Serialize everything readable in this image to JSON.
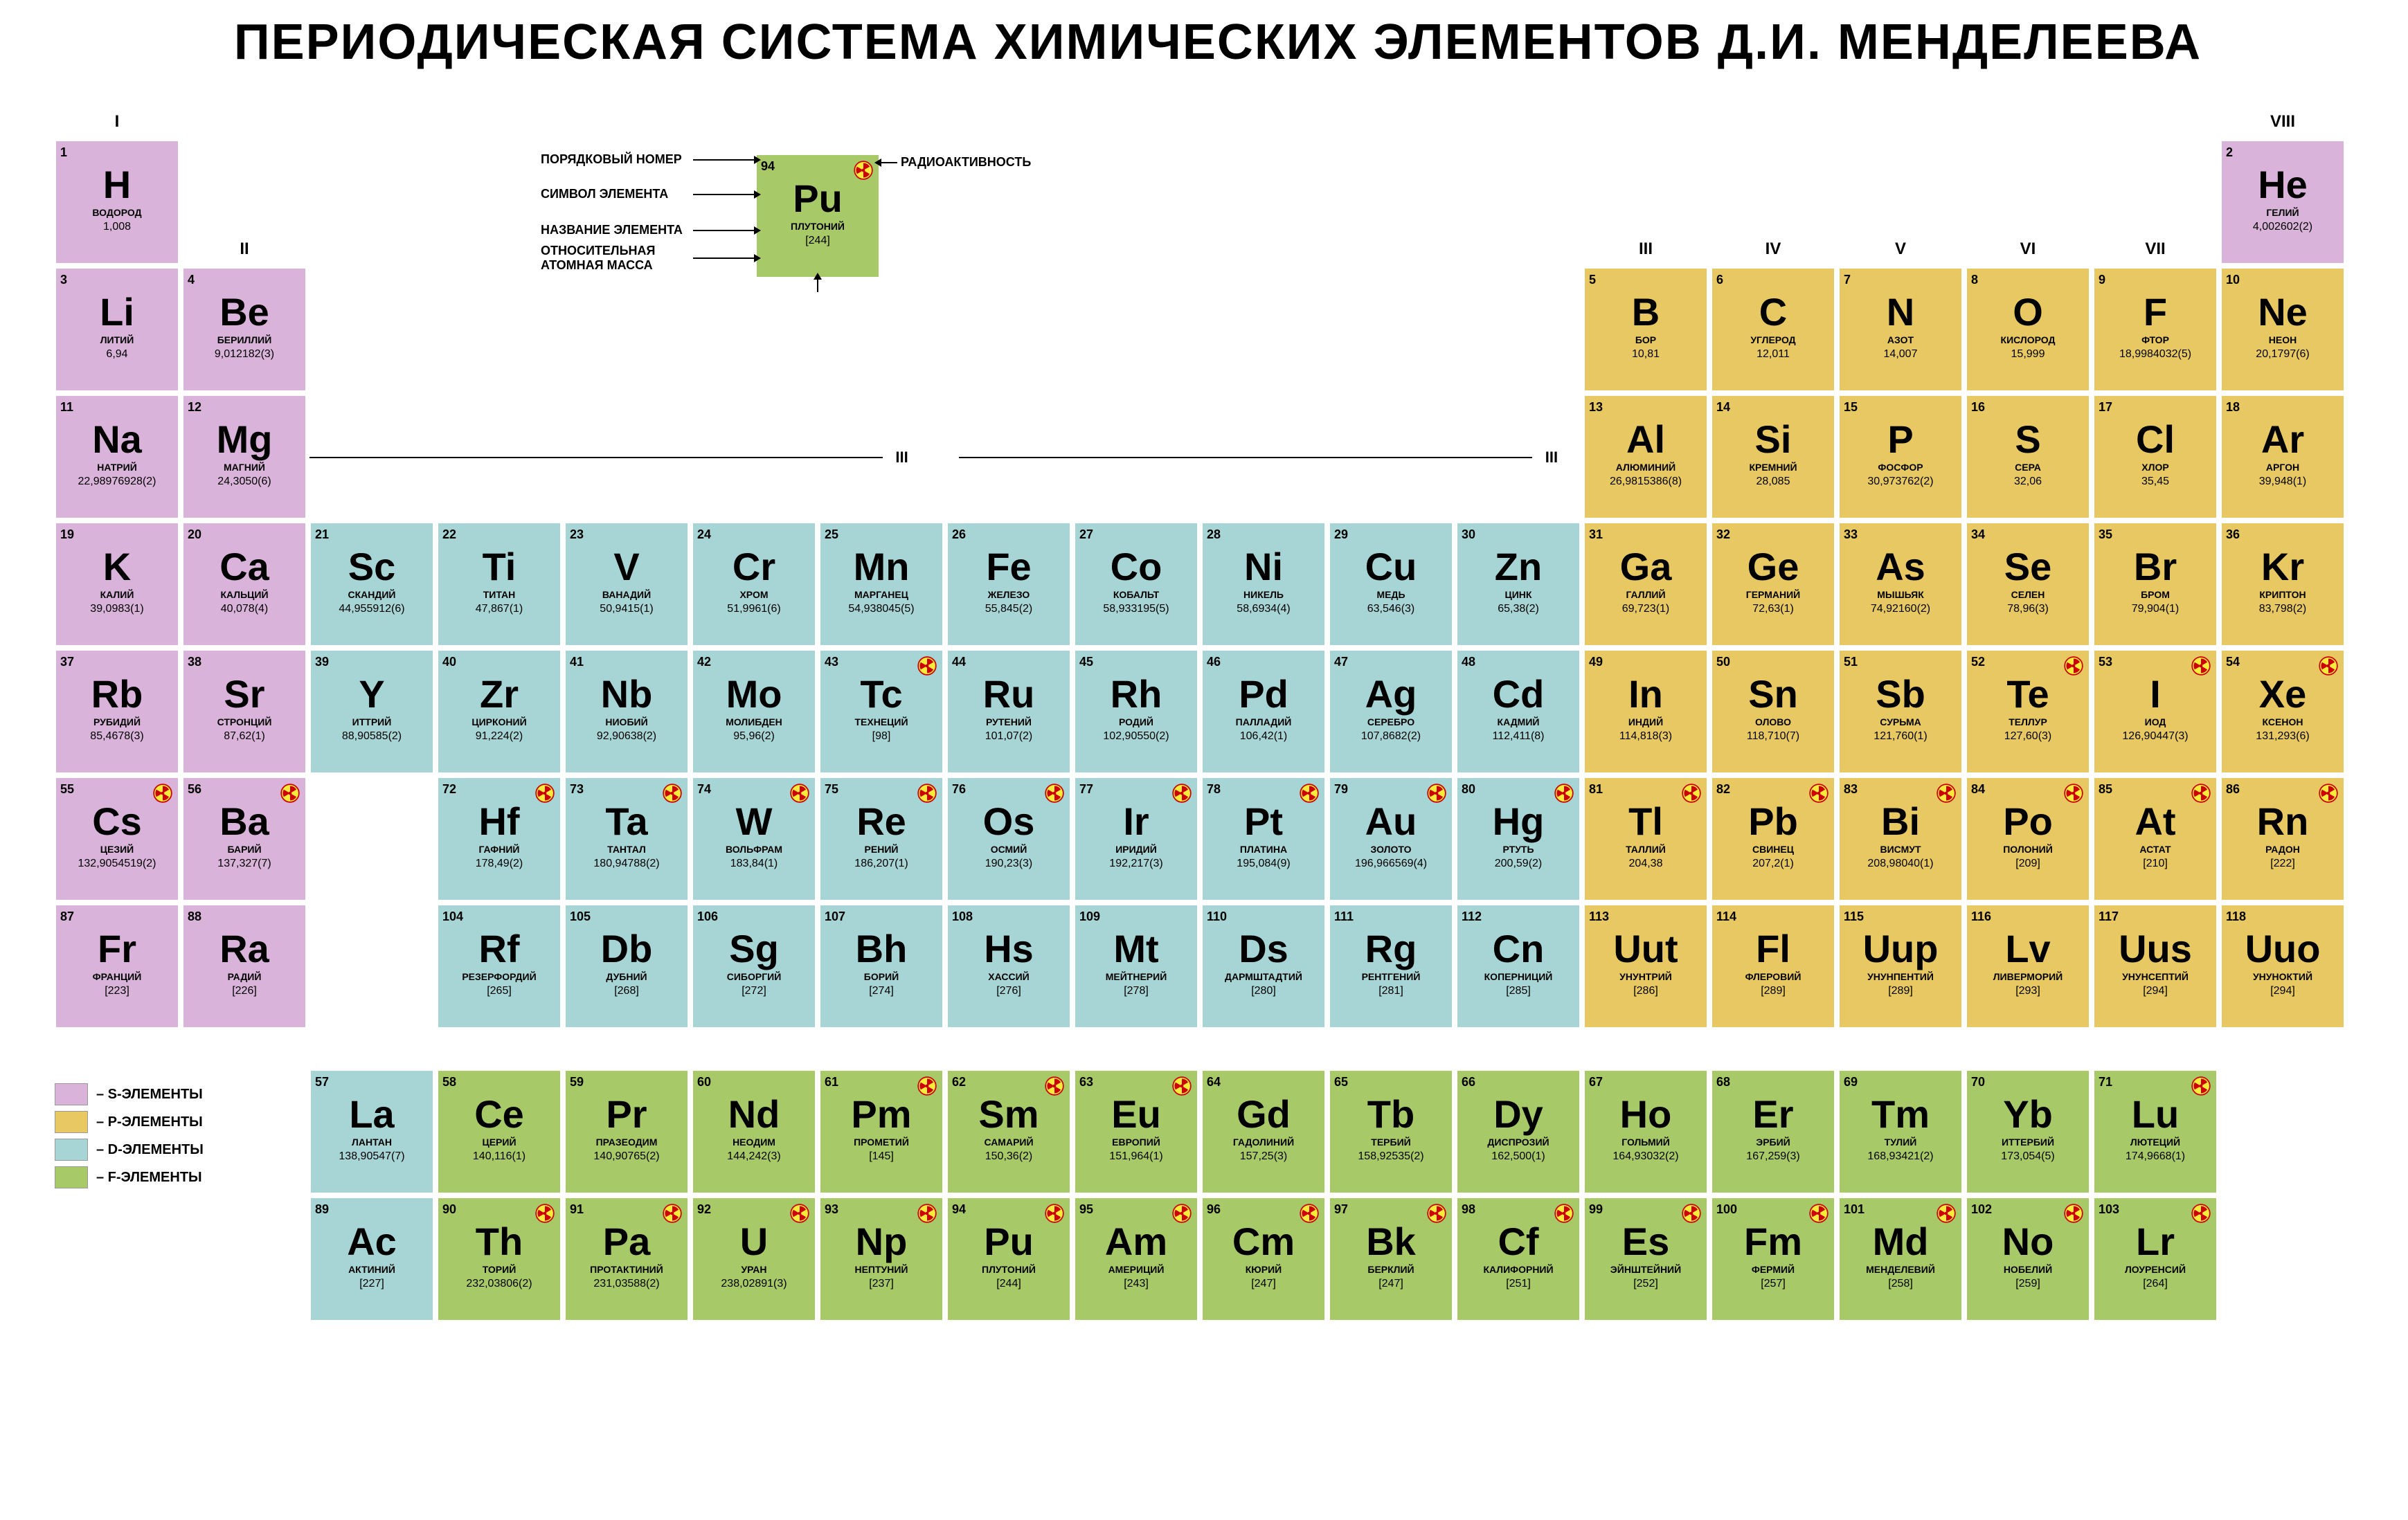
{
  "title": "ПЕРИОДИЧЕСКАЯ СИСТЕМА ХИМИЧЕСКИХ ЭЛЕМЕНТОВ Д.И. МЕНДЕЛЕЕВА",
  "colors": {
    "s": "#d9b3d9",
    "p": "#e8c862",
    "d": "#a7d4d4",
    "f": "#a8c968",
    "background": "#ffffff",
    "text": "#2a2a2a"
  },
  "cell": {
    "w": 180,
    "h": 180,
    "gap": 4
  },
  "groups": {
    "I": 0,
    "II": 1,
    "III": 12,
    "IV": 13,
    "V": 14,
    "VI": 15,
    "VII": 16,
    "VIII": 17
  },
  "key": {
    "labels": {
      "atomic_number": "ПОРЯДКОВЫЙ НОМЕР",
      "symbol": "СИМВОЛ ЭЛЕМЕНТА",
      "name": "НАЗВАНИЕ ЭЛЕМЕНТА",
      "mass": "ОТНОСИТЕЛЬНАЯ АТОМНАЯ МАССА",
      "radioactive": "РАДИОАКТИВНОСТЬ"
    },
    "example": {
      "n": 94,
      "sym": "Pu",
      "name": "ПЛУТОНИЙ",
      "mass": "[244]",
      "block": "f",
      "rad": true
    }
  },
  "legend": [
    {
      "block": "s",
      "label": "– S-ЭЛЕМЕНТЫ"
    },
    {
      "block": "p",
      "label": "– P-ЭЛЕМЕНТЫ"
    },
    {
      "block": "d",
      "label": "– D-ЭЛЕМЕНТЫ"
    },
    {
      "block": "f",
      "label": "– F-ЭЛЕМЕНТЫ"
    }
  ],
  "iii_label": "III",
  "elements": [
    {
      "n": 1,
      "sym": "H",
      "name": "ВОДОРОД",
      "mass": "1,008",
      "block": "s",
      "row": 0,
      "col": 0
    },
    {
      "n": 2,
      "sym": "He",
      "name": "ГЕЛИЙ",
      "mass": "4,002602(2)",
      "block": "s",
      "row": 0,
      "col": 17
    },
    {
      "n": 3,
      "sym": "Li",
      "name": "ЛИТИЙ",
      "mass": "6,94",
      "block": "s",
      "row": 1,
      "col": 0
    },
    {
      "n": 4,
      "sym": "Be",
      "name": "БЕРИЛЛИЙ",
      "mass": "9,012182(3)",
      "block": "s",
      "row": 1,
      "col": 1
    },
    {
      "n": 5,
      "sym": "B",
      "name": "БОР",
      "mass": "10,81",
      "block": "p",
      "row": 1,
      "col": 12
    },
    {
      "n": 6,
      "sym": "C",
      "name": "УГЛЕРОД",
      "mass": "12,011",
      "block": "p",
      "row": 1,
      "col": 13
    },
    {
      "n": 7,
      "sym": "N",
      "name": "АЗОТ",
      "mass": "14,007",
      "block": "p",
      "row": 1,
      "col": 14
    },
    {
      "n": 8,
      "sym": "O",
      "name": "КИСЛОРОД",
      "mass": "15,999",
      "block": "p",
      "row": 1,
      "col": 15
    },
    {
      "n": 9,
      "sym": "F",
      "name": "ФТОР",
      "mass": "18,9984032(5)",
      "block": "p",
      "row": 1,
      "col": 16
    },
    {
      "n": 10,
      "sym": "Ne",
      "name": "НЕОН",
      "mass": "20,1797(6)",
      "block": "p",
      "row": 1,
      "col": 17
    },
    {
      "n": 11,
      "sym": "Na",
      "name": "НАТРИЙ",
      "mass": "22,98976928(2)",
      "block": "s",
      "row": 2,
      "col": 0
    },
    {
      "n": 12,
      "sym": "Mg",
      "name": "МАГНИЙ",
      "mass": "24,3050(6)",
      "block": "s",
      "row": 2,
      "col": 1
    },
    {
      "n": 13,
      "sym": "Al",
      "name": "АЛЮМИНИЙ",
      "mass": "26,9815386(8)",
      "block": "p",
      "row": 2,
      "col": 12
    },
    {
      "n": 14,
      "sym": "Si",
      "name": "КРЕМНИЙ",
      "mass": "28,085",
      "block": "p",
      "row": 2,
      "col": 13
    },
    {
      "n": 15,
      "sym": "P",
      "name": "ФОСФОР",
      "mass": "30,973762(2)",
      "block": "p",
      "row": 2,
      "col": 14
    },
    {
      "n": 16,
      "sym": "S",
      "name": "СЕРА",
      "mass": "32,06",
      "block": "p",
      "row": 2,
      "col": 15
    },
    {
      "n": 17,
      "sym": "Cl",
      "name": "ХЛОР",
      "mass": "35,45",
      "block": "p",
      "row": 2,
      "col": 16
    },
    {
      "n": 18,
      "sym": "Ar",
      "name": "АРГОН",
      "mass": "39,948(1)",
      "block": "p",
      "row": 2,
      "col": 17
    },
    {
      "n": 19,
      "sym": "K",
      "name": "КАЛИЙ",
      "mass": "39,0983(1)",
      "block": "s",
      "row": 3,
      "col": 0
    },
    {
      "n": 20,
      "sym": "Ca",
      "name": "КАЛЬЦИЙ",
      "mass": "40,078(4)",
      "block": "s",
      "row": 3,
      "col": 1
    },
    {
      "n": 21,
      "sym": "Sc",
      "name": "СКАНДИЙ",
      "mass": "44,955912(6)",
      "block": "d",
      "row": 3,
      "col": 2
    },
    {
      "n": 22,
      "sym": "Ti",
      "name": "ТИТАН",
      "mass": "47,867(1)",
      "block": "d",
      "row": 3,
      "col": 3
    },
    {
      "n": 23,
      "sym": "V",
      "name": "ВАНАДИЙ",
      "mass": "50,9415(1)",
      "block": "d",
      "row": 3,
      "col": 4
    },
    {
      "n": 24,
      "sym": "Cr",
      "name": "ХРОМ",
      "mass": "51,9961(6)",
      "block": "d",
      "row": 3,
      "col": 5
    },
    {
      "n": 25,
      "sym": "Mn",
      "name": "МАРГАНЕЦ",
      "mass": "54,938045(5)",
      "block": "d",
      "row": 3,
      "col": 6
    },
    {
      "n": 26,
      "sym": "Fe",
      "name": "ЖЕЛЕЗО",
      "mass": "55,845(2)",
      "block": "d",
      "row": 3,
      "col": 7
    },
    {
      "n": 27,
      "sym": "Co",
      "name": "КОБАЛЬТ",
      "mass": "58,933195(5)",
      "block": "d",
      "row": 3,
      "col": 8
    },
    {
      "n": 28,
      "sym": "Ni",
      "name": "НИКЕЛЬ",
      "mass": "58,6934(4)",
      "block": "d",
      "row": 3,
      "col": 9
    },
    {
      "n": 29,
      "sym": "Cu",
      "name": "МЕДЬ",
      "mass": "63,546(3)",
      "block": "d",
      "row": 3,
      "col": 10
    },
    {
      "n": 30,
      "sym": "Zn",
      "name": "ЦИНК",
      "mass": "65,38(2)",
      "block": "d",
      "row": 3,
      "col": 11
    },
    {
      "n": 31,
      "sym": "Ga",
      "name": "ГАЛЛИЙ",
      "mass": "69,723(1)",
      "block": "p",
      "row": 3,
      "col": 12
    },
    {
      "n": 32,
      "sym": "Ge",
      "name": "ГЕРМАНИЙ",
      "mass": "72,63(1)",
      "block": "p",
      "row": 3,
      "col": 13
    },
    {
      "n": 33,
      "sym": "As",
      "name": "МЫШЬЯК",
      "mass": "74,92160(2)",
      "block": "p",
      "row": 3,
      "col": 14
    },
    {
      "n": 34,
      "sym": "Se",
      "name": "СЕЛЕН",
      "mass": "78,96(3)",
      "block": "p",
      "row": 3,
      "col": 15
    },
    {
      "n": 35,
      "sym": "Br",
      "name": "БРОМ",
      "mass": "79,904(1)",
      "block": "p",
      "row": 3,
      "col": 16
    },
    {
      "n": 36,
      "sym": "Kr",
      "name": "КРИПТОН",
      "mass": "83,798(2)",
      "block": "p",
      "row": 3,
      "col": 17
    },
    {
      "n": 37,
      "sym": "Rb",
      "name": "РУБИДИЙ",
      "mass": "85,4678(3)",
      "block": "s",
      "row": 4,
      "col": 0
    },
    {
      "n": 38,
      "sym": "Sr",
      "name": "СТРОНЦИЙ",
      "mass": "87,62(1)",
      "block": "s",
      "row": 4,
      "col": 1
    },
    {
      "n": 39,
      "sym": "Y",
      "name": "ИТТРИЙ",
      "mass": "88,90585(2)",
      "block": "d",
      "row": 4,
      "col": 2
    },
    {
      "n": 40,
      "sym": "Zr",
      "name": "ЦИРКОНИЙ",
      "mass": "91,224(2)",
      "block": "d",
      "row": 4,
      "col": 3
    },
    {
      "n": 41,
      "sym": "Nb",
      "name": "НИОБИЙ",
      "mass": "92,90638(2)",
      "block": "d",
      "row": 4,
      "col": 4
    },
    {
      "n": 42,
      "sym": "Mo",
      "name": "МОЛИБДЕН",
      "mass": "95,96(2)",
      "block": "d",
      "row": 4,
      "col": 5
    },
    {
      "n": 43,
      "sym": "Tc",
      "name": "ТЕХНЕЦИЙ",
      "mass": "[98]",
      "block": "d",
      "row": 4,
      "col": 6,
      "rad": true
    },
    {
      "n": 44,
      "sym": "Ru",
      "name": "РУТЕНИЙ",
      "mass": "101,07(2)",
      "block": "d",
      "row": 4,
      "col": 7
    },
    {
      "n": 45,
      "sym": "Rh",
      "name": "РОДИЙ",
      "mass": "102,90550(2)",
      "block": "d",
      "row": 4,
      "col": 8
    },
    {
      "n": 46,
      "sym": "Pd",
      "name": "ПАЛЛАДИЙ",
      "mass": "106,42(1)",
      "block": "d",
      "row": 4,
      "col": 9
    },
    {
      "n": 47,
      "sym": "Ag",
      "name": "СЕРЕБРО",
      "mass": "107,8682(2)",
      "block": "d",
      "row": 4,
      "col": 10
    },
    {
      "n": 48,
      "sym": "Cd",
      "name": "КАДМИЙ",
      "mass": "112,411(8)",
      "block": "d",
      "row": 4,
      "col": 11
    },
    {
      "n": 49,
      "sym": "In",
      "name": "ИНДИЙ",
      "mass": "114,818(3)",
      "block": "p",
      "row": 4,
      "col": 12
    },
    {
      "n": 50,
      "sym": "Sn",
      "name": "ОЛОВО",
      "mass": "118,710(7)",
      "block": "p",
      "row": 4,
      "col": 13
    },
    {
      "n": 51,
      "sym": "Sb",
      "name": "СУРЬМА",
      "mass": "121,760(1)",
      "block": "p",
      "row": 4,
      "col": 14
    },
    {
      "n": 52,
      "sym": "Te",
      "name": "ТЕЛЛУР",
      "mass": "127,60(3)",
      "block": "p",
      "row": 4,
      "col": 15,
      "rad": true
    },
    {
      "n": 53,
      "sym": "I",
      "name": "ИОД",
      "mass": "126,90447(3)",
      "block": "p",
      "row": 4,
      "col": 16,
      "rad": true
    },
    {
      "n": 54,
      "sym": "Xe",
      "name": "КСЕНОН",
      "mass": "131,293(6)",
      "block": "p",
      "row": 4,
      "col": 17,
      "rad": true
    },
    {
      "n": 55,
      "sym": "Cs",
      "name": "ЦЕЗИЙ",
      "mass": "132,9054519(2)",
      "block": "s",
      "row": 5,
      "col": 0,
      "rad": true
    },
    {
      "n": 56,
      "sym": "Ba",
      "name": "БАРИЙ",
      "mass": "137,327(7)",
      "block": "s",
      "row": 5,
      "col": 1,
      "rad": true
    },
    {
      "n": 72,
      "sym": "Hf",
      "name": "ГАФНИЙ",
      "mass": "178,49(2)",
      "block": "d",
      "row": 5,
      "col": 3,
      "rad": true
    },
    {
      "n": 73,
      "sym": "Ta",
      "name": "ТАНТАЛ",
      "mass": "180,94788(2)",
      "block": "d",
      "row": 5,
      "col": 4,
      "rad": true
    },
    {
      "n": 74,
      "sym": "W",
      "name": "ВОЛЬФРАМ",
      "mass": "183,84(1)",
      "block": "d",
      "row": 5,
      "col": 5,
      "rad": true
    },
    {
      "n": 75,
      "sym": "Re",
      "name": "РЕНИЙ",
      "mass": "186,207(1)",
      "block": "d",
      "row": 5,
      "col": 6,
      "rad": true
    },
    {
      "n": 76,
      "sym": "Os",
      "name": "ОСМИЙ",
      "mass": "190,23(3)",
      "block": "d",
      "row": 5,
      "col": 7,
      "rad": true
    },
    {
      "n": 77,
      "sym": "Ir",
      "name": "ИРИДИЙ",
      "mass": "192,217(3)",
      "block": "d",
      "row": 5,
      "col": 8,
      "rad": true
    },
    {
      "n": 78,
      "sym": "Pt",
      "name": "ПЛАТИНА",
      "mass": "195,084(9)",
      "block": "d",
      "row": 5,
      "col": 9,
      "rad": true
    },
    {
      "n": 79,
      "sym": "Au",
      "name": "ЗОЛОТО",
      "mass": "196,966569(4)",
      "block": "d",
      "row": 5,
      "col": 10,
      "rad": true
    },
    {
      "n": 80,
      "sym": "Hg",
      "name": "РТУТЬ",
      "mass": "200,59(2)",
      "block": "d",
      "row": 5,
      "col": 11,
      "rad": true
    },
    {
      "n": 81,
      "sym": "Tl",
      "name": "ТАЛЛИЙ",
      "mass": "204,38",
      "block": "p",
      "row": 5,
      "col": 12,
      "rad": true
    },
    {
      "n": 82,
      "sym": "Pb",
      "name": "СВИНЕЦ",
      "mass": "207,2(1)",
      "block": "p",
      "row": 5,
      "col": 13,
      "rad": true
    },
    {
      "n": 83,
      "sym": "Bi",
      "name": "ВИСМУТ",
      "mass": "208,98040(1)",
      "block": "p",
      "row": 5,
      "col": 14,
      "rad": true
    },
    {
      "n": 84,
      "sym": "Po",
      "name": "ПОЛОНИЙ",
      "mass": "[209]",
      "block": "p",
      "row": 5,
      "col": 15,
      "rad": true
    },
    {
      "n": 85,
      "sym": "At",
      "name": "АСТАТ",
      "mass": "[210]",
      "block": "p",
      "row": 5,
      "col": 16,
      "rad": true
    },
    {
      "n": 86,
      "sym": "Rn",
      "name": "РАДОН",
      "mass": "[222]",
      "block": "p",
      "row": 5,
      "col": 17,
      "rad": true
    },
    {
      "n": 87,
      "sym": "Fr",
      "name": "ФРАНЦИЙ",
      "mass": "[223]",
      "block": "s",
      "row": 6,
      "col": 0
    },
    {
      "n": 88,
      "sym": "Ra",
      "name": "РАДИЙ",
      "mass": "[226]",
      "block": "s",
      "row": 6,
      "col": 1
    },
    {
      "n": 104,
      "sym": "Rf",
      "name": "Резерфордий",
      "mass": "[265]",
      "block": "d",
      "row": 6,
      "col": 3
    },
    {
      "n": 105,
      "sym": "Db",
      "name": "ДУБНИЙ",
      "mass": "[268]",
      "block": "d",
      "row": 6,
      "col": 4
    },
    {
      "n": 106,
      "sym": "Sg",
      "name": "СИБОРГИЙ",
      "mass": "[272]",
      "block": "d",
      "row": 6,
      "col": 5
    },
    {
      "n": 107,
      "sym": "Bh",
      "name": "БОРИЙ",
      "mass": "[274]",
      "block": "d",
      "row": 6,
      "col": 6
    },
    {
      "n": 108,
      "sym": "Hs",
      "name": "ХАССИЙ",
      "mass": "[276]",
      "block": "d",
      "row": 6,
      "col": 7
    },
    {
      "n": 109,
      "sym": "Mt",
      "name": "МЕЙТНЕРИЙ",
      "mass": "[278]",
      "block": "d",
      "row": 6,
      "col": 8
    },
    {
      "n": 110,
      "sym": "Ds",
      "name": "ДАРМШТАДТИЙ",
      "mass": "[280]",
      "block": "d",
      "row": 6,
      "col": 9
    },
    {
      "n": 111,
      "sym": "Rg",
      "name": "РЕНТГЕНИЙ",
      "mass": "[281]",
      "block": "d",
      "row": 6,
      "col": 10
    },
    {
      "n": 112,
      "sym": "Cn",
      "name": "КОПЕРНИЦИЙ",
      "mass": "[285]",
      "block": "d",
      "row": 6,
      "col": 11
    },
    {
      "n": 113,
      "sym": "Uut",
      "name": "УНУНТРИЙ",
      "mass": "[286]",
      "block": "p",
      "row": 6,
      "col": 12
    },
    {
      "n": 114,
      "sym": "Fl",
      "name": "ФЛЕРОВИЙ",
      "mass": "[289]",
      "block": "p",
      "row": 6,
      "col": 13
    },
    {
      "n": 115,
      "sym": "Uup",
      "name": "УНУНПЕНТИЙ",
      "mass": "[289]",
      "block": "p",
      "row": 6,
      "col": 14
    },
    {
      "n": 116,
      "sym": "Lv",
      "name": "ЛИВЕРМОРИЙ",
      "mass": "[293]",
      "block": "p",
      "row": 6,
      "col": 15
    },
    {
      "n": 117,
      "sym": "Uus",
      "name": "УНУНСЕПТИЙ",
      "mass": "[294]",
      "block": "p",
      "row": 6,
      "col": 16
    },
    {
      "n": 118,
      "sym": "Uuo",
      "name": "УНУНОКТИЙ",
      "mass": "[294]",
      "block": "p",
      "row": 6,
      "col": 17
    },
    {
      "n": 57,
      "sym": "La",
      "name": "ЛАНТАН",
      "mass": "138,90547(7)",
      "block": "d",
      "row": 7.3,
      "col": 2
    },
    {
      "n": 58,
      "sym": "Ce",
      "name": "ЦЕРИЙ",
      "mass": "140,116(1)",
      "block": "f",
      "row": 7.3,
      "col": 3
    },
    {
      "n": 59,
      "sym": "Pr",
      "name": "ПРАЗЕОДИМ",
      "mass": "140,90765(2)",
      "block": "f",
      "row": 7.3,
      "col": 4
    },
    {
      "n": 60,
      "sym": "Nd",
      "name": "НЕОДИМ",
      "mass": "144,242(3)",
      "block": "f",
      "row": 7.3,
      "col": 5
    },
    {
      "n": 61,
      "sym": "Pm",
      "name": "ПРОМЕТИЙ",
      "mass": "[145]",
      "block": "f",
      "row": 7.3,
      "col": 6,
      "rad": true
    },
    {
      "n": 62,
      "sym": "Sm",
      "name": "САМАРИЙ",
      "mass": "150,36(2)",
      "block": "f",
      "row": 7.3,
      "col": 7,
      "rad": true
    },
    {
      "n": 63,
      "sym": "Eu",
      "name": "ЕВРОПИЙ",
      "mass": "151,964(1)",
      "block": "f",
      "row": 7.3,
      "col": 8,
      "rad": true
    },
    {
      "n": 64,
      "sym": "Gd",
      "name": "ГАДОЛИНИЙ",
      "mass": "157,25(3)",
      "block": "f",
      "row": 7.3,
      "col": 9
    },
    {
      "n": 65,
      "sym": "Tb",
      "name": "ТЕРБИЙ",
      "mass": "158,92535(2)",
      "block": "f",
      "row": 7.3,
      "col": 10
    },
    {
      "n": 66,
      "sym": "Dy",
      "name": "ДИСПРОЗИЙ",
      "mass": "162,500(1)",
      "block": "f",
      "row": 7.3,
      "col": 11
    },
    {
      "n": 67,
      "sym": "Ho",
      "name": "ГОЛЬМИЙ",
      "mass": "164,93032(2)",
      "block": "f",
      "row": 7.3,
      "col": 12
    },
    {
      "n": 68,
      "sym": "Er",
      "name": "ЭРБИЙ",
      "mass": "167,259(3)",
      "block": "f",
      "row": 7.3,
      "col": 13
    },
    {
      "n": 69,
      "sym": "Tm",
      "name": "ТУЛИЙ",
      "mass": "168,93421(2)",
      "block": "f",
      "row": 7.3,
      "col": 14
    },
    {
      "n": 70,
      "sym": "Yb",
      "name": "ИТТЕРБИЙ",
      "mass": "173,054(5)",
      "block": "f",
      "row": 7.3,
      "col": 15
    },
    {
      "n": 71,
      "sym": "Lu",
      "name": "ЛЮТЕЦИЙ",
      "mass": "174,9668(1)",
      "block": "f",
      "row": 7.3,
      "col": 16,
      "rad": true
    },
    {
      "n": 89,
      "sym": "Ac",
      "name": "АКТИНИЙ",
      "mass": "[227]",
      "block": "d",
      "row": 8.3,
      "col": 2
    },
    {
      "n": 90,
      "sym": "Th",
      "name": "ТОРИЙ",
      "mass": "232,03806(2)",
      "block": "f",
      "row": 8.3,
      "col": 3,
      "rad": true
    },
    {
      "n": 91,
      "sym": "Pa",
      "name": "ПРОТАКТИНИЙ",
      "mass": "231,03588(2)",
      "block": "f",
      "row": 8.3,
      "col": 4,
      "rad": true
    },
    {
      "n": 92,
      "sym": "U",
      "name": "УРАН",
      "mass": "238,02891(3)",
      "block": "f",
      "row": 8.3,
      "col": 5,
      "rad": true
    },
    {
      "n": 93,
      "sym": "Np",
      "name": "НЕПТУНИЙ",
      "mass": "[237]",
      "block": "f",
      "row": 8.3,
      "col": 6,
      "rad": true
    },
    {
      "n": 94,
      "sym": "Pu",
      "name": "ПЛУТОНИЙ",
      "mass": "[244]",
      "block": "f",
      "row": 8.3,
      "col": 7,
      "rad": true
    },
    {
      "n": 95,
      "sym": "Am",
      "name": "АМЕРИЦИЙ",
      "mass": "[243]",
      "block": "f",
      "row": 8.3,
      "col": 8,
      "rad": true
    },
    {
      "n": 96,
      "sym": "Cm",
      "name": "КЮРИЙ",
      "mass": "[247]",
      "block": "f",
      "row": 8.3,
      "col": 9,
      "rad": true
    },
    {
      "n": 97,
      "sym": "Bk",
      "name": "БЕРКЛИЙ",
      "mass": "[247]",
      "block": "f",
      "row": 8.3,
      "col": 10,
      "rad": true
    },
    {
      "n": 98,
      "sym": "Cf",
      "name": "Калифорний",
      "mass": "[251]",
      "block": "f",
      "row": 8.3,
      "col": 11,
      "rad": true
    },
    {
      "n": 99,
      "sym": "Es",
      "name": "Эйнштейний",
      "mass": "[252]",
      "block": "f",
      "row": 8.3,
      "col": 12,
      "rad": true
    },
    {
      "n": 100,
      "sym": "Fm",
      "name": "ФЕРМИЙ",
      "mass": "[257]",
      "block": "f",
      "row": 8.3,
      "col": 13,
      "rad": true
    },
    {
      "n": 101,
      "sym": "Md",
      "name": "Менделевий",
      "mass": "[258]",
      "block": "f",
      "row": 8.3,
      "col": 14,
      "rad": true
    },
    {
      "n": 102,
      "sym": "No",
      "name": "НОБЕЛИЙ",
      "mass": "[259]",
      "block": "f",
      "row": 8.3,
      "col": 15,
      "rad": true
    },
    {
      "n": 103,
      "sym": "Lr",
      "name": "ЛОУРЕНСИЙ",
      "mass": "[264]",
      "block": "f",
      "row": 8.3,
      "col": 16,
      "rad": true
    }
  ]
}
